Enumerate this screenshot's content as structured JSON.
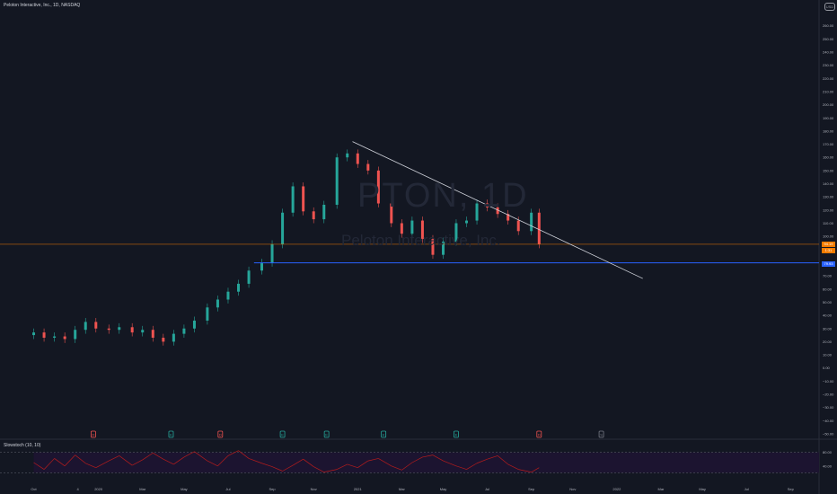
{
  "header": {
    "title": "Peloton Interactive, Inc., 1D, NASDAQ",
    "logo_label": "USD"
  },
  "watermark": {
    "symbol": "PTON, 1D",
    "name": "Peloton Interactive, Inc."
  },
  "oscillator": {
    "title": "Slowstoch (10, 10)",
    "ticks": [
      "80.00",
      "40.00"
    ]
  },
  "price_labels": {
    "last": "94.19",
    "current_time": "1:31",
    "support": "79.93"
  },
  "colors": {
    "background": "#131722",
    "up": "#26a69a",
    "down": "#ef5350",
    "support_line": "#2962ff",
    "trendline": "#d1d4dc",
    "price_line": "#f57c00",
    "stoch": "#b71c1c"
  },
  "chart_data": {
    "type": "candlestick",
    "ylim": [
      -50,
      270
    ],
    "y_ticks": [
      "260.00",
      "250.00",
      "240.00",
      "230.00",
      "220.00",
      "210.00",
      "200.00",
      "190.00",
      "180.00",
      "170.00",
      "160.00",
      "150.00",
      "140.00",
      "130.00",
      "120.00",
      "110.00",
      "100.00",
      "90.00",
      "80.00",
      "70.00",
      "60.00",
      "50.00",
      "40.00",
      "30.00",
      "20.00",
      "10.00",
      "0.00",
      "−10.00",
      "−20.00",
      "−30.00",
      "−40.00",
      "−50.00"
    ],
    "x_ticks": [
      "Oct",
      "4",
      "2020",
      "Mar",
      "May",
      "Jul",
      "Sep",
      "Nov",
      "2021",
      "Mar",
      "May",
      "Jul",
      "Sep",
      "Nov",
      "2022",
      "Mar",
      "May",
      "Jul",
      "Sep"
    ],
    "series": [
      {
        "values": [
          [
            2019.75,
            27
          ],
          [
            2019.79,
            23
          ],
          [
            2019.83,
            24
          ],
          [
            2019.87,
            22
          ],
          [
            2019.91,
            29
          ],
          [
            2019.95,
            35
          ],
          [
            2019.99,
            30
          ],
          [
            2020.04,
            29
          ],
          [
            2020.08,
            31
          ],
          [
            2020.13,
            27
          ],
          [
            2020.17,
            29
          ],
          [
            2020.21,
            23
          ],
          [
            2020.25,
            20
          ],
          [
            2020.29,
            26
          ],
          [
            2020.33,
            30
          ],
          [
            2020.37,
            36
          ],
          [
            2020.42,
            46
          ],
          [
            2020.46,
            52
          ],
          [
            2020.5,
            58
          ],
          [
            2020.54,
            64
          ],
          [
            2020.58,
            74
          ],
          [
            2020.63,
            80
          ],
          [
            2020.67,
            94
          ],
          [
            2020.71,
            118
          ],
          [
            2020.75,
            138
          ],
          [
            2020.79,
            119
          ],
          [
            2020.83,
            113
          ],
          [
            2020.87,
            124
          ],
          [
            2020.92,
            160
          ],
          [
            2020.96,
            163
          ],
          [
            2021.0,
            155
          ],
          [
            2021.04,
            150
          ],
          [
            2021.08,
            125
          ],
          [
            2021.13,
            110
          ],
          [
            2021.17,
            102
          ],
          [
            2021.21,
            112
          ],
          [
            2021.25,
            98
          ],
          [
            2021.29,
            86
          ],
          [
            2021.33,
            96
          ],
          [
            2021.38,
            110
          ],
          [
            2021.42,
            112
          ],
          [
            2021.46,
            125
          ],
          [
            2021.5,
            122
          ],
          [
            2021.54,
            117
          ],
          [
            2021.58,
            112
          ],
          [
            2021.62,
            104
          ],
          [
            2021.67,
            118
          ],
          [
            2021.7,
            94
          ]
        ]
      }
    ],
    "support_level": 79.93,
    "trendline": {
      "from": [
        2020.98,
        172
      ],
      "to": [
        2022.1,
        68
      ]
    },
    "stochastic": [
      50,
      30,
      62,
      40,
      72,
      48,
      35,
      55,
      70,
      42,
      58,
      78,
      60,
      45,
      66,
      82,
      55,
      40,
      70,
      85,
      62,
      48,
      38,
      25,
      42,
      60,
      38,
      22,
      30,
      45,
      35,
      55,
      62,
      40,
      28,
      50,
      66,
      72,
      55,
      40,
      30,
      48,
      60,
      70,
      45,
      30,
      22,
      35
    ],
    "markers": [
      {
        "x": 2019.98,
        "kind": "down",
        "label": "D"
      },
      {
        "x": 2020.28,
        "kind": "up",
        "label": "E"
      },
      {
        "x": 2020.47,
        "kind": "down",
        "label": "D"
      },
      {
        "x": 2020.71,
        "kind": "up",
        "label": "E"
      },
      {
        "x": 2020.88,
        "kind": "up",
        "label": "E"
      },
      {
        "x": 2021.1,
        "kind": "up",
        "label": "E"
      },
      {
        "x": 2021.38,
        "kind": "up",
        "label": "E"
      },
      {
        "x": 2021.7,
        "kind": "down",
        "label": "D"
      },
      {
        "x": 2021.94,
        "kind": "neutral",
        "label": "S"
      }
    ]
  }
}
